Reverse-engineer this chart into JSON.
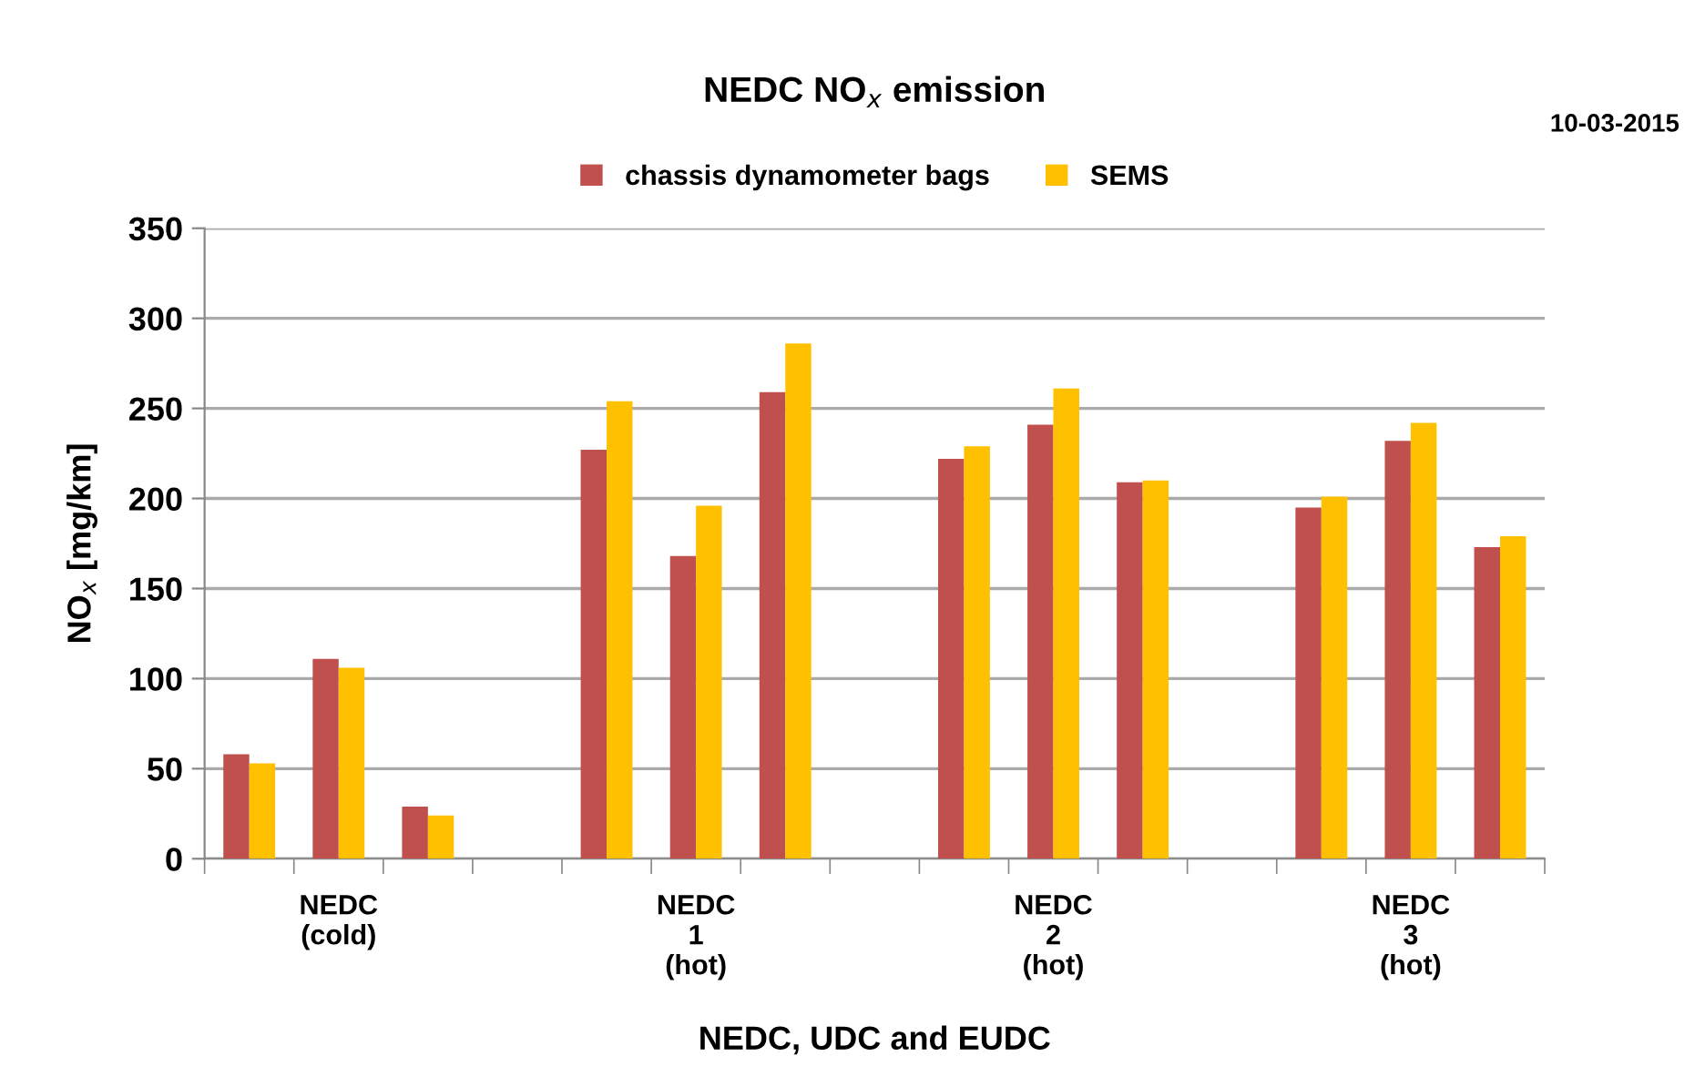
{
  "chart_data": {
    "type": "bar",
    "title": "NEDC NO$_{x}$ emission",
    "xlabel": "NEDC, UDC and EUDC",
    "ylabel": "NO$_{x}$ [mg/km]",
    "annotations": [
      "10-03-2015"
    ],
    "categories": [
      null,
      "NEDC\n(cold)",
      null,
      null,
      null,
      "NEDC\n1\n(hot)",
      null,
      null,
      null,
      "NEDC\n2\n(hot)",
      null,
      null,
      null,
      "NEDC\n3\n(hot)",
      null
    ],
    "series": [
      {
        "name": "chassis dynamometer bags",
        "color": "#c0504d",
        "values": [
          58,
          111,
          29,
          null,
          227,
          168,
          259,
          null,
          222,
          241,
          209,
          null,
          195,
          232,
          173
        ]
      },
      {
        "name": "SEMS",
        "color": "#ffc000",
        "values": [
          53,
          106,
          24,
          null,
          254,
          196,
          286,
          null,
          229,
          261,
          210,
          null,
          201,
          242,
          179
        ]
      }
    ],
    "ylim": [
      0,
      350
    ],
    "yticks": [
      0,
      50,
      100,
      150,
      200,
      250,
      300,
      350
    ],
    "grid": "y",
    "legend": "top"
  }
}
